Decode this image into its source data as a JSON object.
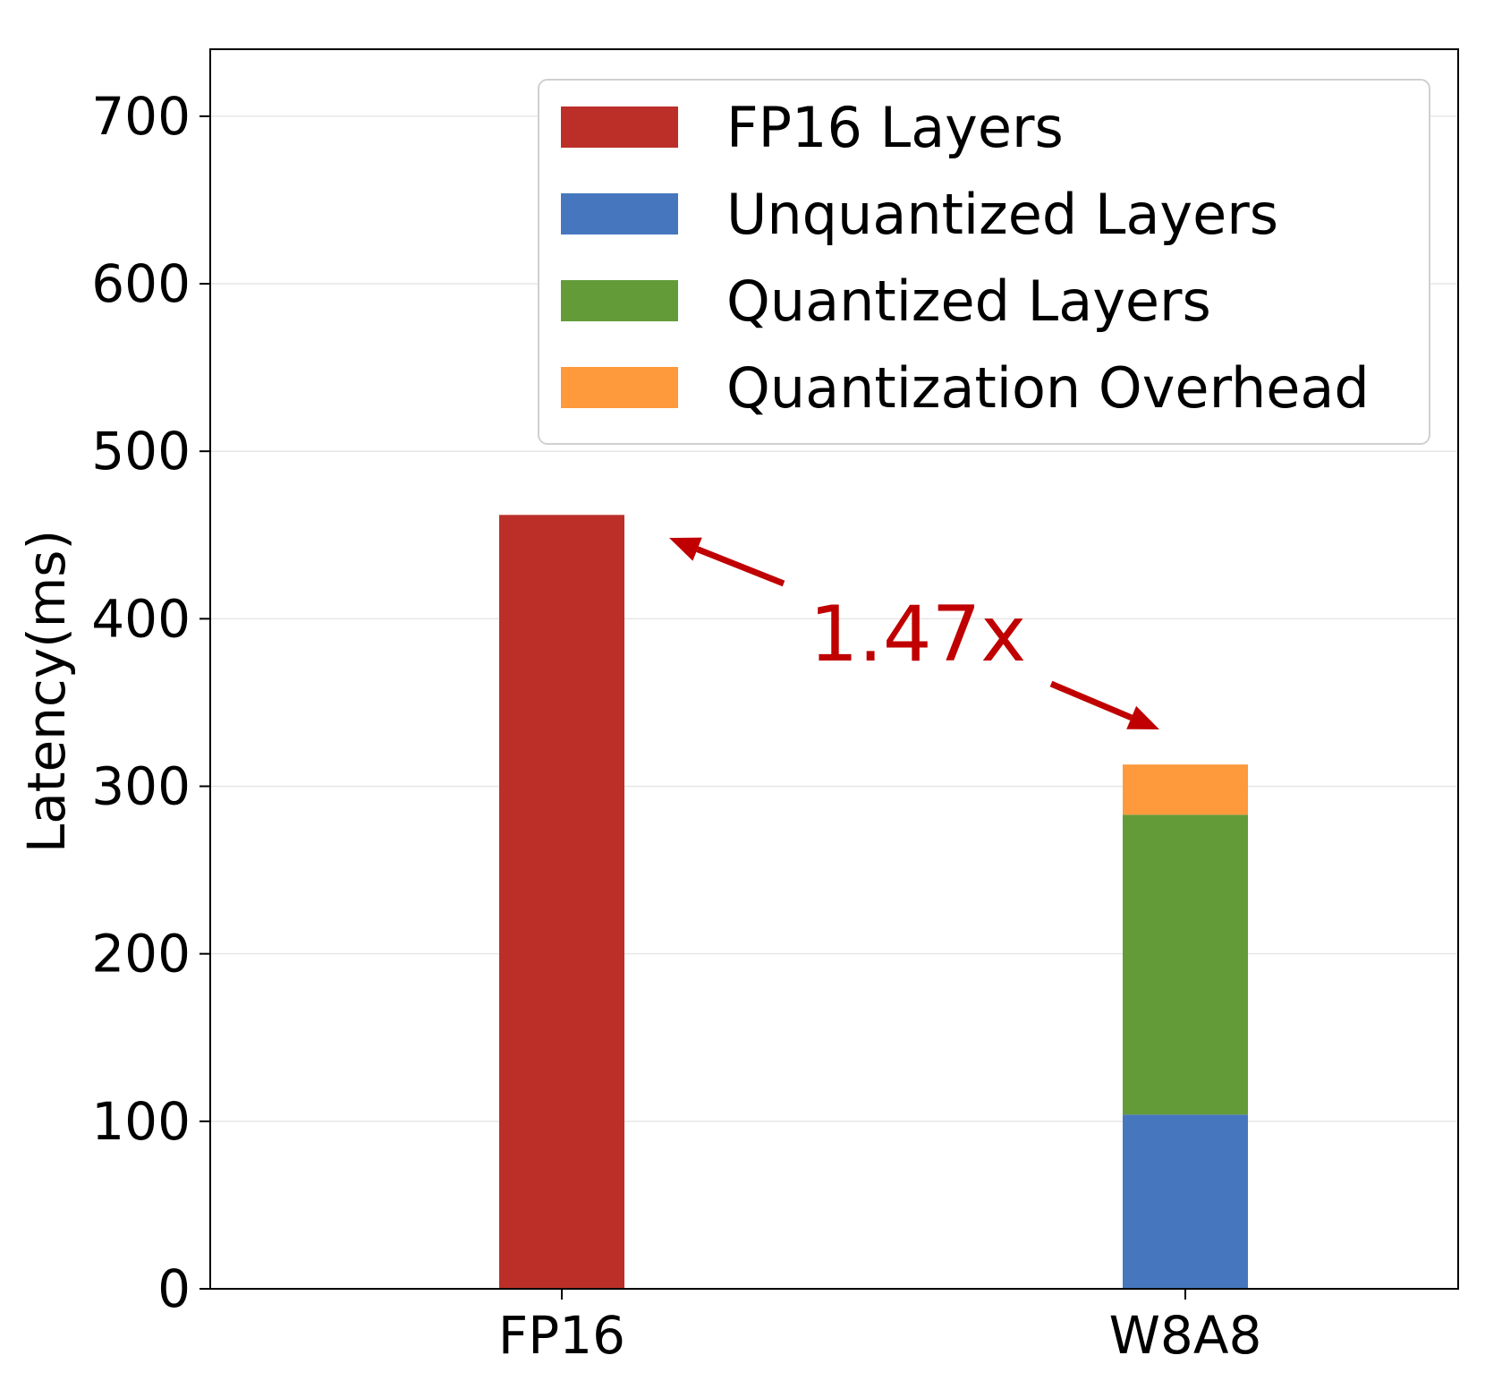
{
  "chart_data": {
    "type": "bar",
    "stacked": true,
    "categories": [
      "FP16",
      "W8A8"
    ],
    "series": [
      {
        "name": "FP16 Layers",
        "color": "#BC2F29",
        "values": [
          462,
          0
        ]
      },
      {
        "name": "Unquantized Layers",
        "color": "#4677BE",
        "values": [
          0,
          104
        ]
      },
      {
        "name": "Quantized Layers",
        "color": "#629B38",
        "values": [
          0,
          179
        ]
      },
      {
        "name": "Quantization Overhead",
        "color": "#FE993C",
        "values": [
          0,
          30
        ]
      }
    ],
    "ylabel": "Latency(ms)",
    "xlabel": "",
    "ylim": [
      0,
      740
    ],
    "yticks": [
      0,
      100,
      200,
      300,
      400,
      500,
      600,
      700
    ],
    "grid": "horizontal",
    "legend_position": "top-right",
    "annotation": {
      "text": "1.47x",
      "color": "#C00000"
    }
  }
}
